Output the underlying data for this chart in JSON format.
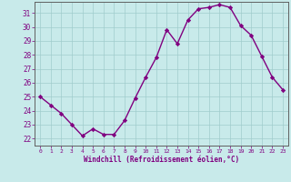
{
  "x": [
    0,
    1,
    2,
    3,
    4,
    5,
    6,
    7,
    8,
    9,
    10,
    11,
    12,
    13,
    14,
    15,
    16,
    17,
    18,
    19,
    20,
    21,
    22,
    23
  ],
  "y": [
    25.0,
    24.4,
    23.8,
    23.0,
    22.2,
    22.7,
    22.3,
    22.3,
    23.3,
    24.9,
    26.4,
    27.8,
    29.8,
    28.8,
    30.5,
    31.3,
    31.4,
    31.6,
    31.4,
    30.1,
    29.4,
    27.9,
    26.4,
    25.5
  ],
  "line_color": "#800080",
  "marker": "D",
  "marker_size": 2.2,
  "bg_color": "#c8eaea",
  "grid_color": "#a0cccc",
  "axis_label_color": "#800080",
  "tick_label_color": "#800080",
  "xlabel": "Windchill (Refroidissement éolien,°C)",
  "xlim": [
    -0.5,
    23.5
  ],
  "ylim": [
    21.5,
    31.8
  ],
  "yticks": [
    22,
    23,
    24,
    25,
    26,
    27,
    28,
    29,
    30,
    31
  ],
  "xticks": [
    0,
    1,
    2,
    3,
    4,
    5,
    6,
    7,
    8,
    9,
    10,
    11,
    12,
    13,
    14,
    15,
    16,
    17,
    18,
    19,
    20,
    21,
    22,
    23
  ],
  "line_width": 1.0,
  "spine_color": "#606060"
}
